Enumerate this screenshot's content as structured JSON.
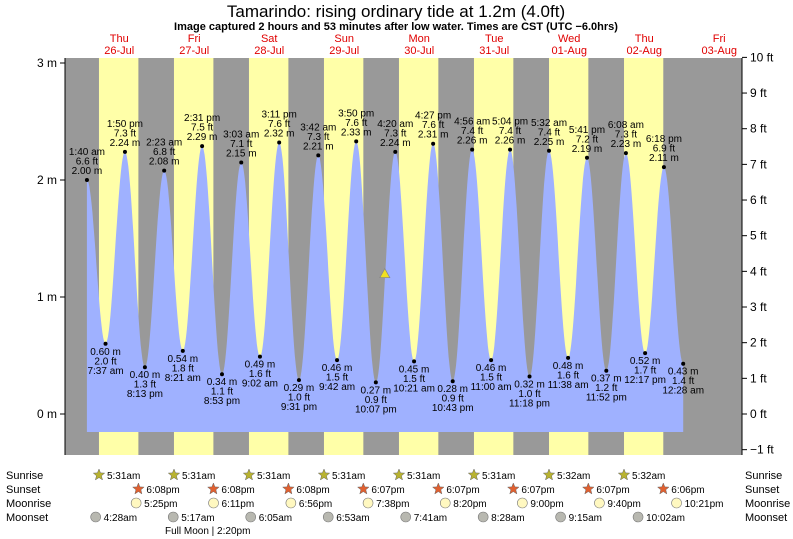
{
  "title": "Tamarindo: rising  ordinary tide at 1.2m (4.0ft)",
  "subtitle": "Image captured 2 hours and 53 minutes after low water. Times are CST (UTC −6.0hrs)",
  "colors": {
    "night": "#999999",
    "day": "#ffffa8",
    "water": "#9fb1ff",
    "day_label": "#e00000",
    "sun_star": "#b9b330",
    "sunset_star": "#e06030",
    "moonrise": "#fff8c0",
    "moonset": "#b8b8b0",
    "current_marker": "#f0e020"
  },
  "days": [
    {
      "dow": "Thu",
      "date": "26-Jul"
    },
    {
      "dow": "Fri",
      "date": "27-Jul"
    },
    {
      "dow": "Sat",
      "date": "28-Jul"
    },
    {
      "dow": "Sun",
      "date": "29-Jul"
    },
    {
      "dow": "Mon",
      "date": "30-Jul"
    },
    {
      "dow": "Tue",
      "date": "31-Jul"
    },
    {
      "dow": "Wed",
      "date": "01-Aug"
    },
    {
      "dow": "Thu",
      "date": "02-Aug"
    },
    {
      "dow": "Fri",
      "date": "03-Aug"
    }
  ],
  "chart_data": {
    "type": "area",
    "title": "Tamarindo: rising  ordinary tide at 1.2m (4.0ft)",
    "x_unit": "hours from 26-Jul 00:00 CST",
    "y_left": {
      "label": "m",
      "ylim": [
        -0.2,
        3.0
      ],
      "ticks": [
        "0 m",
        "1 m",
        "2 m",
        "3 m"
      ]
    },
    "y_right": {
      "label": "ft",
      "ticks": [
        "−1 ft",
        "0 ft",
        "1 ft",
        "2 ft",
        "3 ft",
        "4 ft",
        "5 ft",
        "6 ft",
        "7 ft",
        "8 ft",
        "9 ft",
        "10 ft"
      ]
    },
    "tides": [
      {
        "time": "1:40 am",
        "h": 1.667,
        "m": "2.00 m",
        "ft": "6.6 ft",
        "type": "high"
      },
      {
        "time": "7:37 am",
        "h": 7.617,
        "m": "0.60 m",
        "ft": "2.0 ft",
        "type": "low"
      },
      {
        "time": "1:50 pm",
        "h": 13.833,
        "m": "2.24 m",
        "ft": "7.3 ft",
        "type": "high"
      },
      {
        "time": "8:13 pm",
        "h": 20.217,
        "m": "0.40 m",
        "ft": "1.3 ft",
        "type": "low"
      },
      {
        "time": "2:23 am",
        "h": 26.383,
        "m": "2.08 m",
        "ft": "6.8 ft",
        "type": "high"
      },
      {
        "time": "8:21 am",
        "h": 32.35,
        "m": "0.54 m",
        "ft": "1.8 ft",
        "type": "low"
      },
      {
        "time": "2:31 pm",
        "h": 38.517,
        "m": "2.29 m",
        "ft": "7.5 ft",
        "type": "high"
      },
      {
        "time": "8:53 pm",
        "h": 44.883,
        "m": "0.34 m",
        "ft": "1.1 ft",
        "type": "low"
      },
      {
        "time": "3:03 am",
        "h": 51.05,
        "m": "2.15 m",
        "ft": "7.1 ft",
        "type": "high"
      },
      {
        "time": "9:02 am",
        "h": 57.033,
        "m": "0.49 m",
        "ft": "1.6 ft",
        "type": "low"
      },
      {
        "time": "3:11 pm",
        "h": 63.183,
        "m": "2.32 m",
        "ft": "7.6 ft",
        "type": "high"
      },
      {
        "time": "9:31 pm",
        "h": 69.517,
        "m": "0.29 m",
        "ft": "1.0 ft",
        "type": "low"
      },
      {
        "time": "3:42 am",
        "h": 75.7,
        "m": "2.21 m",
        "ft": "7.3 ft",
        "type": "high"
      },
      {
        "time": "9:42 am",
        "h": 81.7,
        "m": "0.46 m",
        "ft": "1.5 ft",
        "type": "low"
      },
      {
        "time": "3:50 pm",
        "h": 87.833,
        "m": "2.33 m",
        "ft": "7.6 ft",
        "type": "high"
      },
      {
        "time": "10:07 pm",
        "h": 94.117,
        "m": "0.27 m",
        "ft": "0.9 ft",
        "type": "low"
      },
      {
        "time": "4:20 am",
        "h": 100.333,
        "m": "2.24 m",
        "ft": "7.3 ft",
        "type": "high"
      },
      {
        "time": "10:21 am",
        "h": 106.35,
        "m": "0.45 m",
        "ft": "1.5 ft",
        "type": "low"
      },
      {
        "time": "4:27 pm",
        "h": 112.45,
        "m": "2.31 m",
        "ft": "7.6 ft",
        "type": "high"
      },
      {
        "time": "10:43 pm",
        "h": 118.717,
        "m": "0.28 m",
        "ft": "0.9 ft",
        "type": "low"
      },
      {
        "time": "4:56 am",
        "h": 124.933,
        "m": "2.26 m",
        "ft": "7.4 ft",
        "type": "high"
      },
      {
        "time": "11:00 am",
        "h": 131.0,
        "m": "0.46 m",
        "ft": "1.5 ft",
        "type": "low"
      },
      {
        "time": "5:04 pm",
        "h": 137.067,
        "m": "2.26 m",
        "ft": "7.4 ft",
        "type": "high"
      },
      {
        "time": "11:18 pm",
        "h": 143.3,
        "m": "0.32 m",
        "ft": "1.0 ft",
        "type": "low"
      },
      {
        "time": "5:32 am",
        "h": 149.533,
        "m": "2.25 m",
        "ft": "7.4 ft",
        "type": "high"
      },
      {
        "time": "11:38 am",
        "h": 155.633,
        "m": "0.48 m",
        "ft": "1.6 ft",
        "type": "low"
      },
      {
        "time": "5:41 pm",
        "h": 161.683,
        "m": "2.19 m",
        "ft": "7.2 ft",
        "type": "high"
      },
      {
        "time": "11:52 pm",
        "h": 167.867,
        "m": "0.37 m",
        "ft": "1.2 ft",
        "type": "low"
      },
      {
        "time": "6:08 am",
        "h": 174.133,
        "m": "2.23 m",
        "ft": "7.3 ft",
        "type": "high"
      },
      {
        "time": "12:17 pm",
        "h": 180.283,
        "m": "0.52 m",
        "ft": "1.7 ft",
        "type": "low"
      },
      {
        "time": "6:18 pm",
        "h": 186.3,
        "m": "2.11 m",
        "ft": "6.9 ft",
        "type": "high"
      },
      {
        "time": "12:28 am",
        "h": 192.467,
        "m": "0.43 m",
        "ft": "1.4 ft",
        "type": "low"
      }
    ],
    "current": {
      "label": "rising ordinary tide",
      "h": 96.99,
      "m": 1.2
    }
  },
  "rows": {
    "sunrise": "Sunrise",
    "sunset": "Sunset",
    "moonrise": "Moonrise",
    "moonset": "Moonset"
  },
  "sunrise": [
    {
      "time": "5:31am",
      "h": 5.517
    },
    {
      "time": "5:31am",
      "h": 29.517
    },
    {
      "time": "5:31am",
      "h": 53.517
    },
    {
      "time": "5:31am",
      "h": 77.517
    },
    {
      "time": "5:31am",
      "h": 101.517
    },
    {
      "time": "5:31am",
      "h": 125.517
    },
    {
      "time": "5:32am",
      "h": 149.533
    },
    {
      "time": "5:32am",
      "h": 173.533
    }
  ],
  "sunset": [
    {
      "time": "6:08pm",
      "h": 18.133
    },
    {
      "time": "6:08pm",
      "h": 42.133
    },
    {
      "time": "6:08pm",
      "h": 66.133
    },
    {
      "time": "6:07pm",
      "h": 90.117
    },
    {
      "time": "6:07pm",
      "h": 114.117
    },
    {
      "time": "6:07pm",
      "h": 138.117
    },
    {
      "time": "6:07pm",
      "h": 162.117
    },
    {
      "time": "6:06pm",
      "h": 186.1
    }
  ],
  "moonrise": [
    {
      "time": "5:25pm",
      "h": 17.417
    },
    {
      "time": "6:11pm",
      "h": 42.183
    },
    {
      "time": "6:56pm",
      "h": 66.933
    },
    {
      "time": "7:38pm",
      "h": 91.633
    },
    {
      "time": "8:20pm",
      "h": 116.333
    },
    {
      "time": "9:00pm",
      "h": 141.0
    },
    {
      "time": "9:40pm",
      "h": 165.667
    },
    {
      "time": "10:21pm",
      "h": 190.35
    }
  ],
  "moonset": [
    {
      "time": "4:28am",
      "h": 4.467
    },
    {
      "time": "5:17am",
      "h": 29.283
    },
    {
      "time": "6:05am",
      "h": 54.083
    },
    {
      "time": "6:53am",
      "h": 78.883
    },
    {
      "time": "7:41am",
      "h": 103.683
    },
    {
      "time": "8:28am",
      "h": 128.467
    },
    {
      "time": "9:15am",
      "h": 153.25
    },
    {
      "time": "10:02am",
      "h": 178.033
    }
  ],
  "full_moon": "Full Moon | 2:20pm"
}
